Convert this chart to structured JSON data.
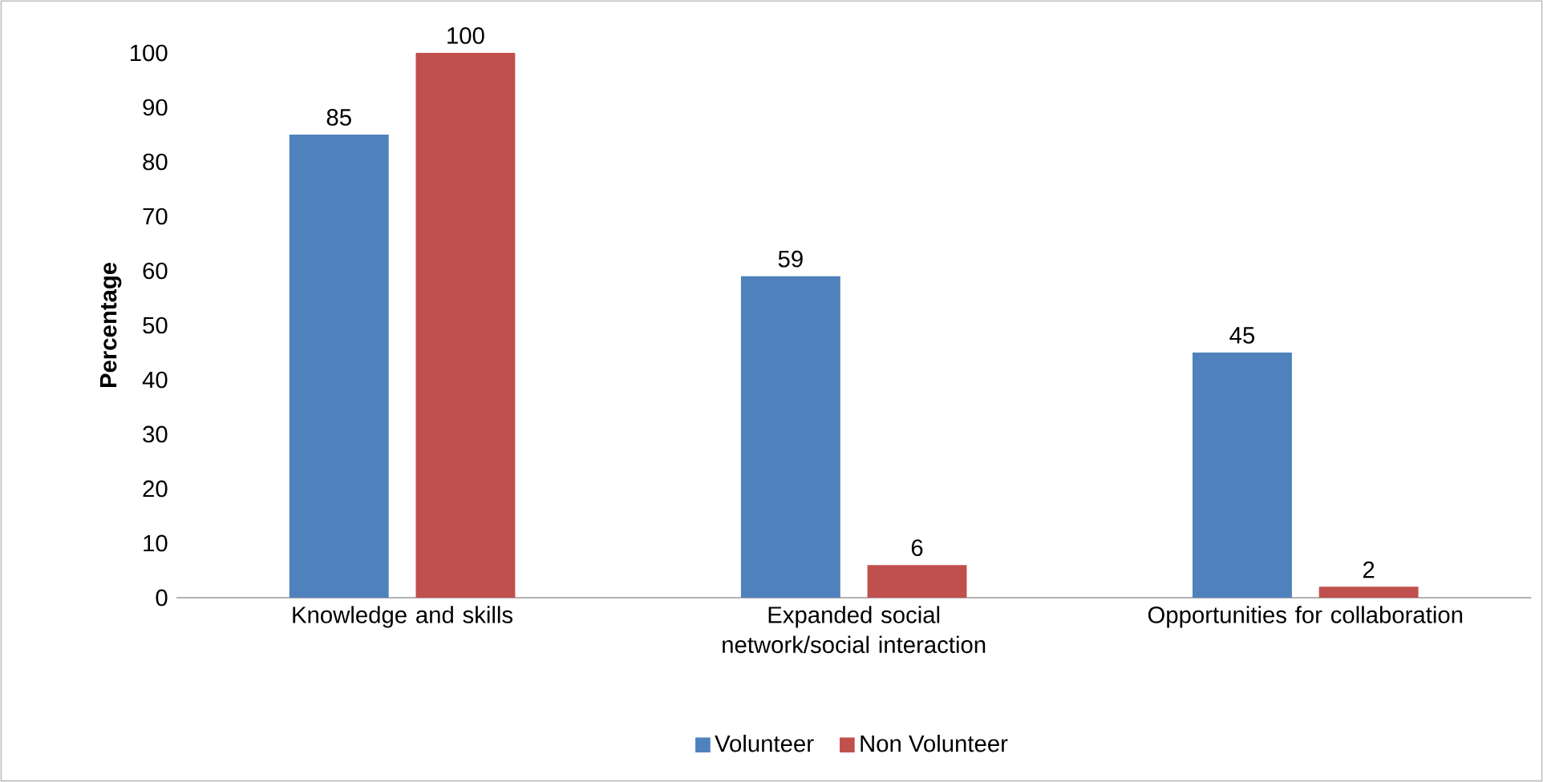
{
  "chart_data": {
    "type": "bar",
    "ylabel": "Percentage",
    "categories": [
      "Knowledge and skills",
      "Expanded social network/social interaction",
      "Opportunities for collaboration"
    ],
    "series": [
      {
        "name": "Volunteer",
        "color": "#4f81bd",
        "values": [
          85,
          59,
          45
        ]
      },
      {
        "name": "Non Volunteer",
        "color": "#c0504d",
        "values": [
          100,
          6,
          2
        ]
      }
    ],
    "ylim": [
      0,
      100
    ],
    "yticks": [
      0,
      10,
      20,
      30,
      40,
      50,
      60,
      70,
      80,
      90,
      100
    ],
    "data_labels": true,
    "legend": "bottom",
    "grid": false
  }
}
